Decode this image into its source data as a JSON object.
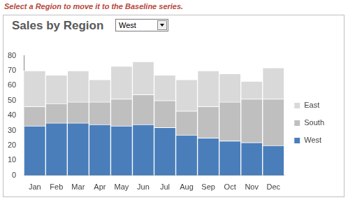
{
  "chart_data": {
    "type": "bar",
    "title": "Sales by Region",
    "annotation": "Select a Region to move it to the Baseline series.",
    "dropdown": "West",
    "categories": [
      "Jan",
      "Feb",
      "Mar",
      "Apr",
      "May",
      "Jun",
      "Jul",
      "Aug",
      "Sep",
      "Oct",
      "Nov",
      "Dec"
    ],
    "series": [
      {
        "name": "West",
        "color": "#4a7ebb",
        "values": [
          33,
          35,
          35,
          34,
          33,
          34,
          32,
          27,
          25,
          23,
          22,
          20
        ]
      },
      {
        "name": "South",
        "color": "#bfbfbf",
        "values": [
          13,
          13,
          14,
          15,
          18,
          20,
          18,
          16,
          21,
          26,
          29,
          31
        ]
      },
      {
        "name": "East",
        "color": "#d9d9d9",
        "values": [
          24,
          19,
          21,
          15,
          22,
          22,
          17,
          21,
          24,
          19,
          12,
          21
        ]
      }
    ],
    "stacked": true,
    "ylim": [
      0,
      80
    ],
    "yticks": [
      0,
      10,
      20,
      30,
      40,
      50,
      60,
      70,
      80
    ],
    "grid": false,
    "legend": "right"
  }
}
